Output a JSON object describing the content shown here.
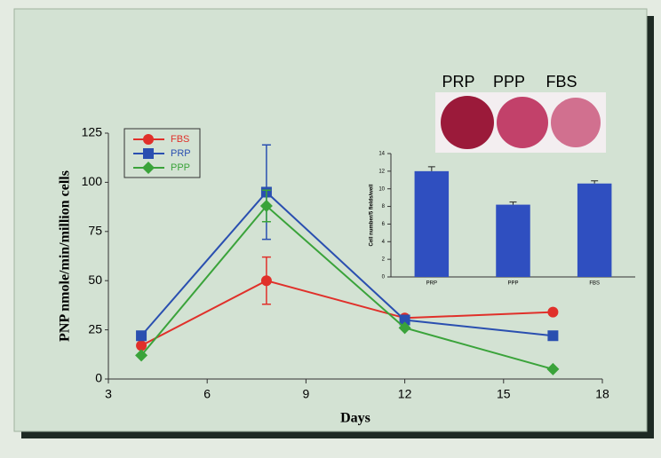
{
  "chart_data": [
    {
      "type": "line",
      "xlabel": "Days",
      "ylabel": "PNP nmole/min/million cells",
      "x": [
        4,
        7.8,
        12,
        16.5
      ],
      "series": [
        {
          "name": "FBS",
          "color": "#e0302a",
          "marker": "circle",
          "values": [
            17,
            50,
            31,
            34
          ],
          "errors": [
            null,
            12,
            null,
            null
          ]
        },
        {
          "name": "PRP",
          "color": "#2a4fb0",
          "marker": "square",
          "values": [
            22,
            95,
            30,
            22
          ],
          "errors": [
            null,
            24,
            null,
            null
          ]
        },
        {
          "name": "PPP",
          "color": "#3aa33a",
          "marker": "diamond",
          "values": [
            12,
            88,
            26,
            5
          ],
          "errors": [
            null,
            8,
            null,
            null
          ]
        }
      ],
      "xlim": [
        3,
        18
      ],
      "xticks": [
        3,
        6,
        9,
        12,
        15,
        18
      ],
      "ylim": [
        0,
        125
      ],
      "yticks": [
        0,
        25,
        50,
        75,
        100,
        125
      ],
      "legend": "upper left"
    },
    {
      "type": "bar",
      "ylabel": "Cell number/5 fields/well",
      "categories": [
        "PRP",
        "PPP",
        "FBS"
      ],
      "values": [
        12,
        8.2,
        10.6
      ],
      "errors": [
        0.5,
        0.3,
        0.3
      ],
      "color": "#2f4fc0",
      "ylim": [
        0,
        14
      ],
      "yticks": [
        0,
        2,
        4,
        6,
        8,
        10,
        12,
        14
      ]
    }
  ],
  "photo": {
    "labels": [
      "PRP",
      "PPP",
      "FBS"
    ]
  }
}
